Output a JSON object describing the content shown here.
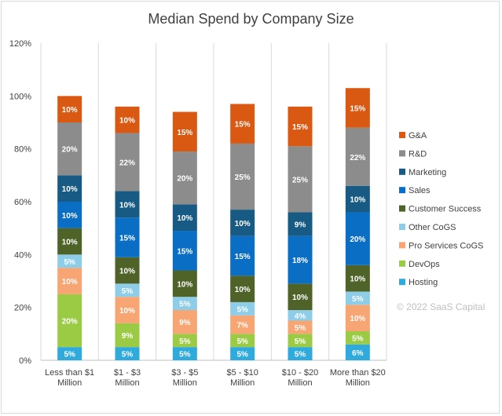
{
  "chart_data": {
    "type": "stacked_bar",
    "title": "Median Spend by Company Size",
    "watermark": "© 2022 SaaS Capital",
    "yticks": [
      "0%",
      "20%",
      "40%",
      "60%",
      "80%",
      "100%",
      "120%"
    ],
    "ylim": [
      0,
      120
    ],
    "categories": [
      [
        "Less than $1",
        "Million"
      ],
      [
        "$1 - $3",
        "Million"
      ],
      [
        "$3 - $5",
        "Million"
      ],
      [
        "$5 - $10",
        "Million"
      ],
      [
        "$10 - $20",
        "Million"
      ],
      [
        "More than $20",
        "Million"
      ]
    ],
    "series": [
      {
        "name": "Hosting",
        "color": "#2eaadc",
        "values": [
          5,
          5,
          5,
          5,
          5,
          6
        ],
        "labels": [
          "5%",
          "5%",
          "5%",
          "5%",
          "5%",
          "6%"
        ]
      },
      {
        "name": "DevOps",
        "color": "#9bcb45",
        "values": [
          20,
          9,
          5,
          5,
          5,
          5
        ],
        "labels": [
          "20%",
          "9%",
          "5%",
          "5%",
          "5%",
          "5%"
        ]
      },
      {
        "name": "Pro Services CoGS",
        "color": "#f7a572",
        "values": [
          10,
          10,
          9,
          7,
          5,
          10
        ],
        "labels": [
          "10%",
          "10%",
          "9%",
          "7%",
          "5%",
          "10%"
        ]
      },
      {
        "name": "Other CoGS",
        "color": "#8ecde8",
        "values": [
          5,
          5,
          5,
          5,
          4,
          5
        ],
        "labels": [
          "5%",
          "5%",
          "5%",
          "5%",
          "4%",
          "5%"
        ]
      },
      {
        "name": "Customer Success",
        "color": "#4f6228",
        "values": [
          10,
          10,
          10,
          10,
          10,
          10
        ],
        "labels": [
          "10%",
          "10%",
          "10%",
          "10%",
          "10%",
          "10%"
        ]
      },
      {
        "name": "Sales",
        "color": "#0a6ec4",
        "values": [
          10,
          15,
          15,
          15,
          18,
          20
        ],
        "labels": [
          "10%",
          "15%",
          "15%",
          "15%",
          "18%",
          "20%"
        ]
      },
      {
        "name": "Marketing",
        "color": "#175b84",
        "values": [
          10,
          10,
          10,
          10,
          9,
          10
        ],
        "labels": [
          "10%",
          "10%",
          "10%",
          "10%",
          "9%",
          "10%"
        ]
      },
      {
        "name": "R&D",
        "color": "#8c8c8c",
        "values": [
          20,
          22,
          20,
          25,
          25,
          22
        ],
        "labels": [
          "20%",
          "22%",
          "20%",
          "25%",
          "25%",
          "22%"
        ]
      },
      {
        "name": "G&A",
        "color": "#d95912",
        "values": [
          10,
          10,
          15,
          15,
          15,
          15
        ],
        "labels": [
          "10%",
          "10%",
          "15%",
          "15%",
          "15%",
          "15%"
        ]
      }
    ],
    "legend_order": [
      "G&A",
      "R&D",
      "Marketing",
      "Sales",
      "Customer Success",
      "Other CoGS",
      "Pro Services CoGS",
      "DevOps",
      "Hosting"
    ],
    "legend_position": "right"
  }
}
